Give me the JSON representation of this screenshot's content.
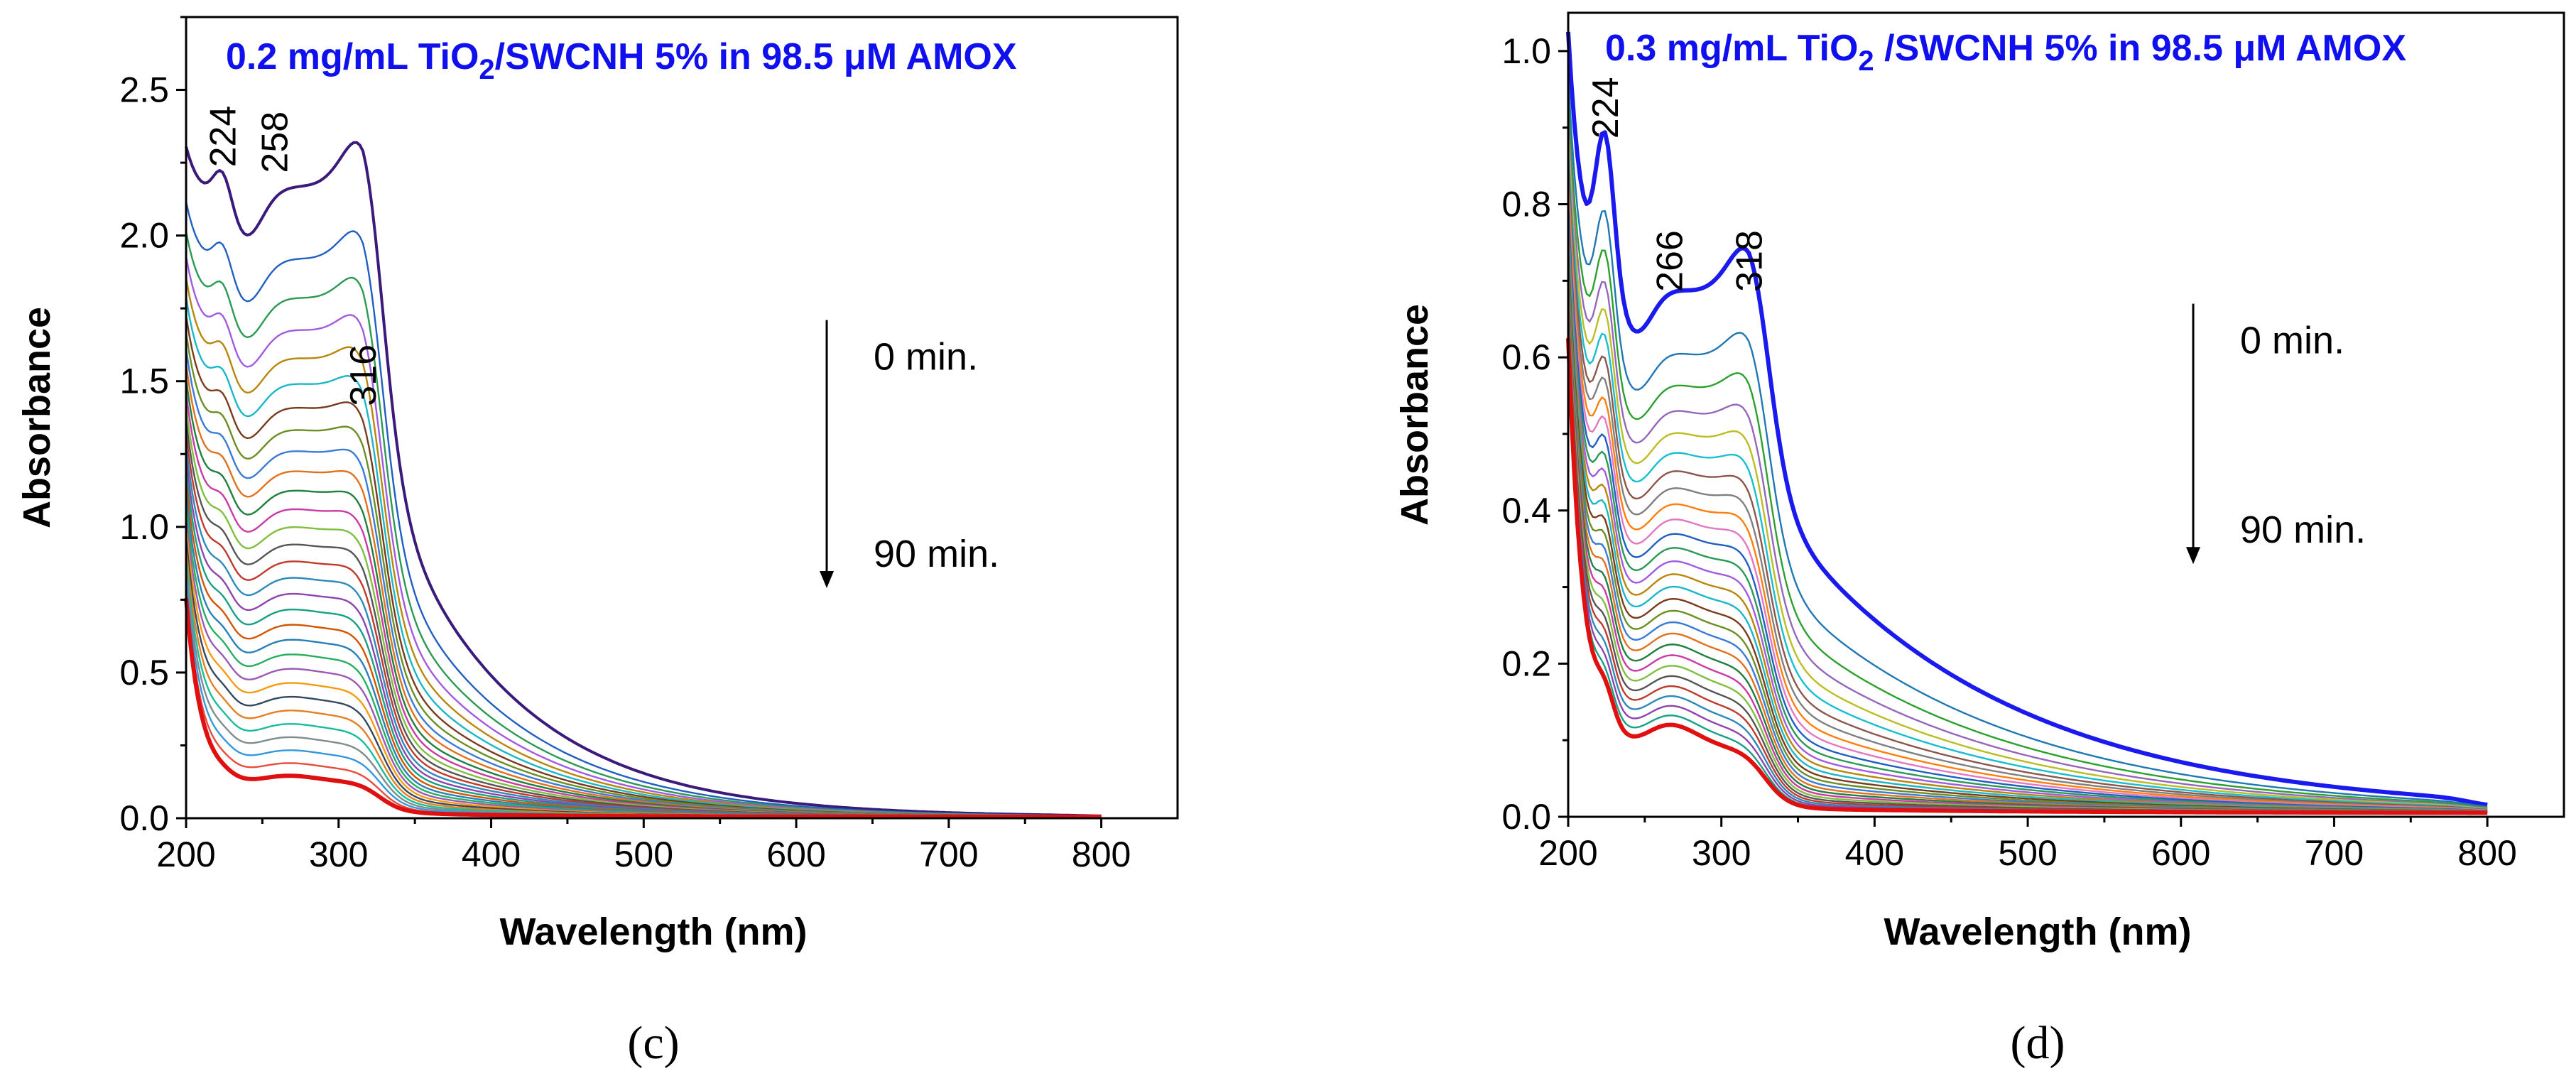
{
  "chart_data": [
    {
      "type": "line",
      "caption": "(c)",
      "title": {
        "pre": "0.2 mg/mL TiO",
        "sub": "2",
        "post": "/SWCNH 5% in 98.5 μM AMOX"
      },
      "xlabel": "Wavelength (nm)",
      "ylabel": "Absorbance",
      "xlim": [
        200,
        850
      ],
      "ylim": [
        0,
        2.75
      ],
      "xticks": [
        200,
        300,
        400,
        500,
        600,
        700,
        800
      ],
      "yticks": [
        0.0,
        0.5,
        1.0,
        1.5,
        2.0,
        2.5
      ],
      "ytick_labels": [
        "0.0",
        "0.5",
        "1.0",
        "1.5",
        "2.0",
        "2.5"
      ],
      "grid": false,
      "peak_labels": [
        {
          "text": "224",
          "x": 224,
          "y": 2.22
        },
        {
          "text": "258",
          "x": 258,
          "y": 2.2
        },
        {
          "text": "316",
          "x": 316,
          "y": 1.4
        }
      ],
      "time_arrow": {
        "x": 620,
        "y_top": 1.71,
        "y_bottom": 0.79,
        "label_start": "0 min.",
        "label_end": "90 min."
      },
      "curve_model": {
        "kind": "uv_spectrum",
        "series_count": 30,
        "head_start": 2.3,
        "head_end": 0.75,
        "plateau_start": 2.1,
        "plateau_end": 0.12,
        "dip_x": 240,
        "dip_depth": 0.06,
        "peak_x": 224,
        "edge_x": 316,
        "shoulder_x": 268,
        "shoulder_bump_start": 0.05,
        "shoulder_bump_end": 0.02,
        "tail_decay": 85,
        "tail_start": 0.62,
        "tail_end": 0.14,
        "end_x": 800,
        "curvature": 1.6
      },
      "palette": [
        "#6b2b8c",
        "#1f5fc2",
        "#2a9a52",
        "#a25be0",
        "#b8860b",
        "#1ab7c9",
        "#7a3b1c",
        "#6b8e23",
        "#3a7bd5",
        "#e2711d",
        "#1e7f3f",
        "#c93aa6",
        "#7fbf3f",
        "#555555",
        "#c0392b",
        "#2c8ab8",
        "#8e44ad",
        "#16a085",
        "#d35400",
        "#2980b9",
        "#27ae60",
        "#9b59b6",
        "#f39c12",
        "#34495e",
        "#e67e22",
        "#1abc9c",
        "#7f8c8d",
        "#3498db",
        "#e74c3c",
        "#95a5a6"
      ],
      "first_series_color": "#3a1a7a",
      "last_series_color": "#e01010"
    },
    {
      "type": "line",
      "caption": "(d)",
      "title": {
        "pre": "0.3 mg/mL TiO",
        "sub": "2",
        "post": " /SWCNH 5% in 98.5 μM AMOX"
      },
      "xlabel": "Wavelength (nm)",
      "ylabel": "Absorbance",
      "xlim": [
        200,
        850
      ],
      "ylim": [
        0,
        1.05
      ],
      "xticks": [
        200,
        300,
        400,
        500,
        600,
        700,
        800
      ],
      "yticks": [
        0.0,
        0.2,
        0.4,
        0.6,
        0.8,
        1.0
      ],
      "ytick_labels": [
        "0.0",
        "0.2",
        "0.4",
        "0.6",
        "0.8",
        "1.0"
      ],
      "grid": false,
      "peak_labels": [
        {
          "text": "224",
          "x": 224,
          "y": 0.88
        },
        {
          "text": "266",
          "x": 266,
          "y": 0.68
        },
        {
          "text": "318",
          "x": 318,
          "y": 0.68
        }
      ],
      "time_arrow": {
        "x": 608,
        "y_top": 0.67,
        "y_bottom": 0.33,
        "label_start": "0 min.",
        "label_end": "90 min."
      },
      "curve_model": {
        "kind": "uv_spectrum",
        "series_count": 28,
        "head_start": 1.02,
        "head_end": 0.62,
        "plateau_start": 0.66,
        "plateau_end": 0.085,
        "dip_x": 245,
        "dip_depth": 0.07,
        "peak_x": 224,
        "peak_height_start": 0.2,
        "peak_height_end": 0.04,
        "edge_x": 318,
        "shoulder_x": 266,
        "shoulder_bump_start": 0.02,
        "shoulder_bump_end": 0.03,
        "tail_decay": 150,
        "tail_start": 0.66,
        "tail_end": 0.08,
        "end_x": 800,
        "curvature": 1.7
      },
      "palette": [
        "#d62728",
        "#1f77b4",
        "#2ca02c",
        "#9467bd",
        "#bcbd22",
        "#17becf",
        "#8c564b",
        "#7f7f7f",
        "#ff7f0e",
        "#e377c2",
        "#1f5fc2",
        "#2a9a52",
        "#a25be0",
        "#b8860b",
        "#1ab7c9",
        "#7a3b1c",
        "#6b8e23",
        "#3a7bd5",
        "#e2711d",
        "#1e7f3f",
        "#c93aa6",
        "#7fbf3f",
        "#555555",
        "#c0392b",
        "#2c8ab8",
        "#8e44ad",
        "#16a085",
        "#d35400"
      ],
      "first_series_color": "#1a1aee",
      "last_series_color": "#e01010"
    }
  ]
}
